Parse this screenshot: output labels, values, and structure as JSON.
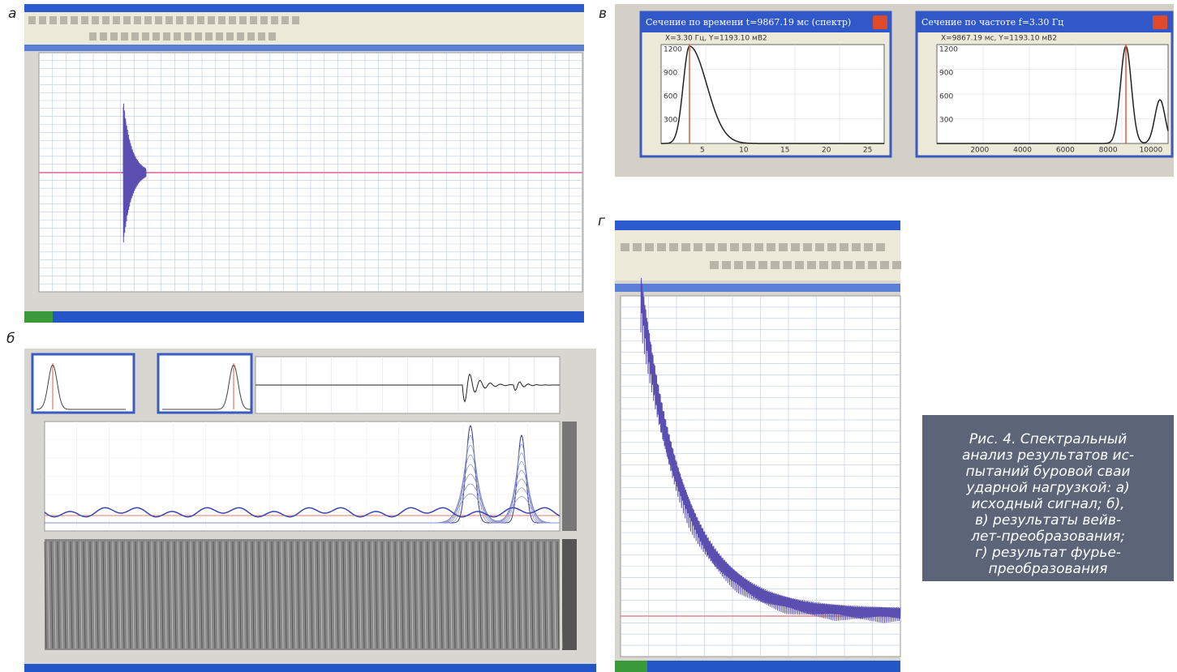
{
  "panel_labels": [
    "а",
    "б",
    "в",
    "г"
  ],
  "panel_v": {
    "window_1": {
      "title": "Сечение по времени t=9867.19 мс (спектр)",
      "readout": "X=3.30 Гц, Y=1193.10 мВ2",
      "yticks": [
        300,
        600,
        900,
        1200
      ],
      "xticks": [
        5,
        10,
        15,
        20,
        25
      ]
    },
    "window_2": {
      "title": "Сечение по частоте f=3.30 Гц",
      "readout": "X=9867.19 мс, Y=1193.10 мВ2",
      "yticks": [
        300,
        600,
        900,
        1200
      ],
      "xticks": [
        2000,
        4000,
        6000,
        8000,
        10000
      ]
    }
  },
  "caption": {
    "lines": [
      "Рис. 4. Спектральный",
      "анализ результатов ис-",
      "пытаний буровой сваи",
      "ударной нагрузкой: а)",
      "исходный сигнал; б),",
      "в) результаты вейв-",
      "лет-преобразования;",
      "г) результат фурье-",
      "преобразования"
    ]
  }
}
